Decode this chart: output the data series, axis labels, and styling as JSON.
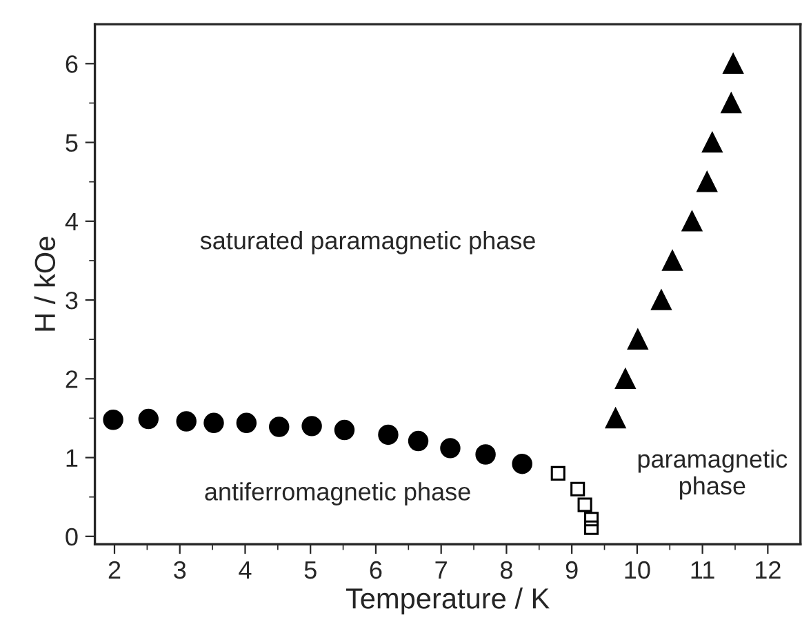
{
  "chart_data": {
    "type": "scatter",
    "xlabel": "Temperature / K",
    "ylabel": "H / kOe",
    "xlim": [
      1.7,
      12.5
    ],
    "ylim": [
      -0.1,
      6.5
    ],
    "xticks": [
      2,
      3,
      4,
      5,
      6,
      7,
      8,
      9,
      10,
      11,
      12
    ],
    "yticks": [
      0,
      1,
      2,
      3,
      4,
      5,
      6
    ],
    "grid": false,
    "legend": false,
    "series": [
      {
        "color": "#000000",
        "marker": "circle",
        "x": [
          1.98,
          2.52,
          3.1,
          3.52,
          4.02,
          4.52,
          5.02,
          5.52,
          6.19,
          6.65,
          7.14,
          7.68,
          8.24
        ],
        "values": [
          1.48,
          1.49,
          1.46,
          1.44,
          1.44,
          1.39,
          1.4,
          1.35,
          1.29,
          1.21,
          1.12,
          1.04,
          0.92
        ]
      },
      {
        "color": "#000000",
        "marker": "square",
        "x": [
          8.79,
          9.09,
          9.2,
          9.3,
          9.3
        ],
        "values": [
          0.8,
          0.6,
          0.4,
          0.22,
          0.11
        ]
      },
      {
        "color": "#000000",
        "marker": "triangle",
        "x": [
          9.67,
          9.82,
          10.01,
          10.37,
          10.54,
          10.84,
          11.07,
          11.15,
          11.44,
          11.47
        ],
        "values": [
          1.5,
          2.0,
          2.5,
          3.0,
          3.5,
          4.0,
          4.5,
          5.0,
          5.5,
          6.0
        ]
      }
    ],
    "annotations": [
      "saturated paramagnetic phase",
      "antiferromagnetic phase",
      "paramagnetic\nphase"
    ]
  }
}
